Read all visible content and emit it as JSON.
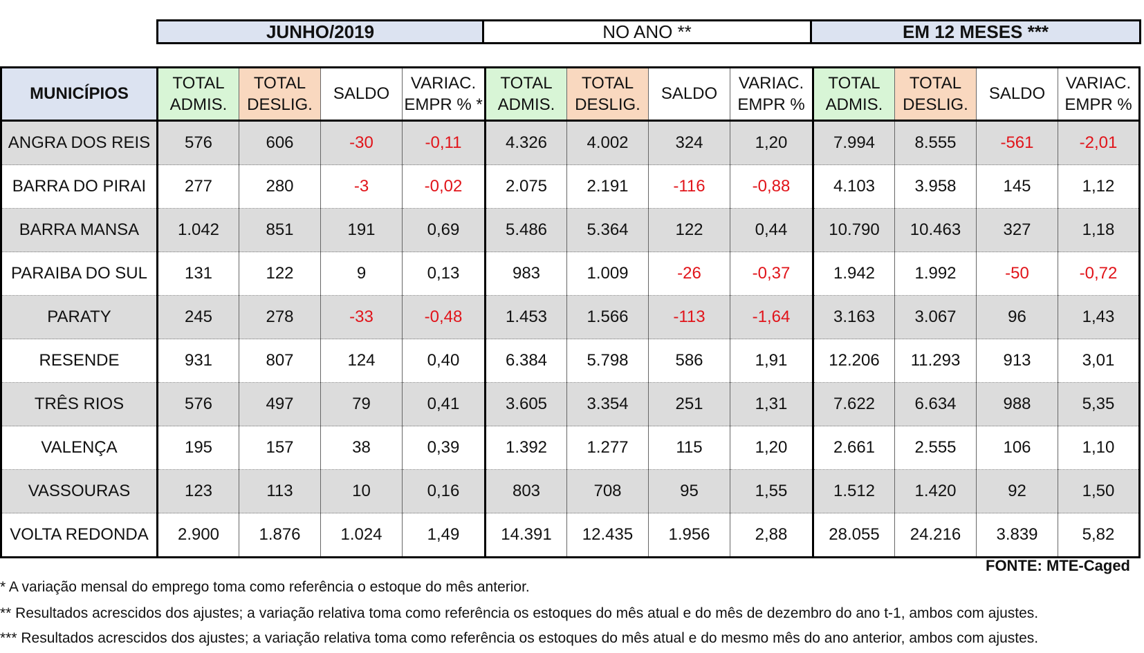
{
  "groups": [
    "JUNHO/2019",
    "NO ANO **",
    "EM 12 MESES ***"
  ],
  "municipios_label": "MUNICÍPIOS",
  "col_headers": {
    "adm": [
      "TOTAL",
      "ADMIS."
    ],
    "des": [
      "TOTAL",
      "DESLIG."
    ],
    "saldo": "SALDO",
    "var_month": [
      "VARIAC.",
      "EMPR % *"
    ],
    "var": [
      "VARIAC.",
      "EMPR %"
    ]
  },
  "chart_data": {
    "type": "table",
    "columns": [
      "MUNICÍPIOS",
      "TOTAL ADMIS.",
      "TOTAL DESLIG.",
      "SALDO",
      "VARIAC. EMPR % *",
      "TOTAL ADMIS.",
      "TOTAL DESLIG.",
      "SALDO",
      "VARIAC. EMPR %",
      "TOTAL ADMIS.",
      "TOTAL DESLIG.",
      "SALDO",
      "VARIAC. EMPR %"
    ],
    "rows": [
      {
        "name": "ANGRA DOS REIS",
        "values": [
          "576",
          "606",
          "-30",
          "-0,11",
          "4.326",
          "4.002",
          "324",
          "1,20",
          "7.994",
          "8.555",
          "-561",
          "-2,01"
        ]
      },
      {
        "name": "BARRA DO PIRAI",
        "values": [
          "277",
          "280",
          "-3",
          "-0,02",
          "2.075",
          "2.191",
          "-116",
          "-0,88",
          "4.103",
          "3.958",
          "145",
          "1,12"
        ]
      },
      {
        "name": "BARRA MANSA",
        "values": [
          "1.042",
          "851",
          "191",
          "0,69",
          "5.486",
          "5.364",
          "122",
          "0,44",
          "10.790",
          "10.463",
          "327",
          "1,18"
        ]
      },
      {
        "name": "PARAIBA DO SUL",
        "values": [
          "131",
          "122",
          "9",
          "0,13",
          "983",
          "1.009",
          "-26",
          "-0,37",
          "1.942",
          "1.992",
          "-50",
          "-0,72"
        ]
      },
      {
        "name": "PARATY",
        "values": [
          "245",
          "278",
          "-33",
          "-0,48",
          "1.453",
          "1.566",
          "-113",
          "-1,64",
          "3.163",
          "3.067",
          "96",
          "1,43"
        ]
      },
      {
        "name": "RESENDE",
        "values": [
          "931",
          "807",
          "124",
          "0,40",
          "6.384",
          "5.798",
          "586",
          "1,91",
          "12.206",
          "11.293",
          "913",
          "3,01"
        ]
      },
      {
        "name": "TRÊS RIOS",
        "values": [
          "576",
          "497",
          "79",
          "0,41",
          "3.605",
          "3.354",
          "251",
          "1,31",
          "7.622",
          "6.634",
          "988",
          "5,35"
        ]
      },
      {
        "name": "VALENÇA",
        "values": [
          "195",
          "157",
          "38",
          "0,39",
          "1.392",
          "1.277",
          "115",
          "1,20",
          "2.661",
          "2.555",
          "106",
          "1,10"
        ]
      },
      {
        "name": "VASSOURAS",
        "values": [
          "123",
          "113",
          "10",
          "0,16",
          "803",
          "708",
          "95",
          "1,55",
          "1.512",
          "1.420",
          "92",
          "1,50"
        ]
      },
      {
        "name": "VOLTA REDONDA",
        "values": [
          "2.900",
          "1.876",
          "1.024",
          "1,49",
          "14.391",
          "12.435",
          "1.956",
          "2,88",
          "28.055",
          "24.216",
          "3.839",
          "5,82"
        ]
      }
    ]
  },
  "colors": {
    "negative": "#e1141a",
    "row_shade": "#dcdcdc",
    "header_blue": "#dce3f1",
    "admis_green": "#d8f5d6",
    "deslig_orange": "#f9d8bf"
  },
  "fonte": "FONTE: MTE-Caged",
  "notes": [
    "*    A variação mensal do emprego toma como referência o estoque do mês anterior.",
    "**  Resultados acrescidos dos ajustes; a variação relativa toma como referência os estoques do mês atual e do mês de dezembro do ano t-1, ambos com ajustes.",
    "*** Resultados acrescidos dos ajustes; a variação relativa toma como referência os estoques do  mês atual e do mesmo mês do ano anterior, ambos com ajustes."
  ]
}
